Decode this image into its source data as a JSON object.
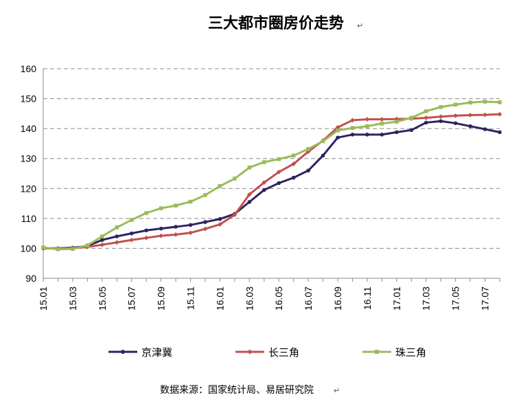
{
  "chart_data": {
    "type": "line",
    "title": "三大都市圈房价走势",
    "source": "数据来源：国家统计局、易居研究院",
    "ylim": [
      90,
      160
    ],
    "yticks": [
      90,
      100,
      110,
      120,
      130,
      140,
      150,
      160
    ],
    "grid": "horizontal-dashed",
    "legend_position": "bottom",
    "x": [
      "15.01",
      "15.02",
      "15.03",
      "15.04",
      "15.05",
      "15.06",
      "15.07",
      "15.08",
      "15.09",
      "15.10",
      "15.11",
      "15.12",
      "16.01",
      "16.02",
      "16.03",
      "16.04",
      "16.05",
      "16.06",
      "16.07",
      "16.08",
      "16.09",
      "16.10",
      "16.11",
      "16.12",
      "17.01",
      "17.02",
      "17.03",
      "17.04",
      "17.05",
      "17.06",
      "17.07",
      "17.08"
    ],
    "xtick_labels": [
      "15.01",
      "15.03",
      "15.05",
      "15.07",
      "15.09",
      "15.11",
      "16.01",
      "16.03",
      "16.05",
      "16.07",
      "16.09",
      "16.11",
      "17.01",
      "17.03",
      "17.05",
      "17.07"
    ],
    "series": [
      {
        "name": "京津冀",
        "color": "#2e2260",
        "marker": "circle",
        "values": [
          100,
          100,
          100.2,
          100.8,
          102.8,
          104,
          105,
          106,
          106.6,
          107.2,
          107.8,
          108.8,
          109.8,
          111.5,
          115.5,
          119.5,
          121.8,
          123.6,
          126,
          131,
          137,
          138,
          138,
          138,
          138.8,
          139.5,
          142,
          142.5,
          141.8,
          140.8,
          139.8,
          138.8
        ]
      },
      {
        "name": "长三角",
        "color": "#c0504d",
        "marker": "diamond",
        "values": [
          100,
          100,
          100,
          100.5,
          101.2,
          102,
          102.8,
          103.5,
          104.2,
          104.6,
          105.2,
          106.5,
          108,
          111.2,
          118,
          122,
          125.5,
          128.2,
          132.3,
          136,
          140.4,
          142.8,
          143.1,
          143.1,
          143.2,
          143.3,
          143.6,
          144,
          144.3,
          144.5,
          144.6,
          144.8
        ]
      },
      {
        "name": "珠三角",
        "color": "#9bbb59",
        "marker": "square",
        "values": [
          100.3,
          99.7,
          99.8,
          101,
          104,
          107,
          109.5,
          111.8,
          113.4,
          114.3,
          115.6,
          117.8,
          120.8,
          123.3,
          127,
          128.8,
          129.8,
          131,
          133.2,
          135.8,
          139.4,
          140.2,
          140.8,
          141.7,
          142.3,
          143.6,
          145.8,
          147.2,
          148,
          148.7,
          149,
          148.8
        ]
      }
    ]
  }
}
